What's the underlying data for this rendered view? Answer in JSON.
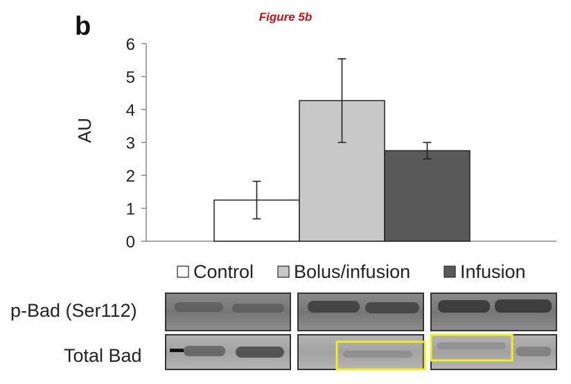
{
  "panel_letter": "b",
  "figure_title": "Figure 5b",
  "colors": {
    "control": "#ffffff",
    "bolus_infusion": "#c8c8c8",
    "infusion": "#595959",
    "highlight": "#f2ee1a",
    "axis": "#888888"
  },
  "chart_data": {
    "type": "bar",
    "title": "Figure 5b",
    "ylabel": "AU",
    "xlabel": "",
    "ylim": [
      0,
      6
    ],
    "yticks": [
      0,
      1,
      2,
      3,
      4,
      5,
      6
    ],
    "grid": false,
    "legend_position": "bottom",
    "series": [
      {
        "name": "Control",
        "value": 1.25,
        "error": 0.57,
        "color": "#ffffff"
      },
      {
        "name": "Bolus/infusion",
        "value": 4.27,
        "error": 1.27,
        "color": "#c8c8c8"
      },
      {
        "name": "Infusion",
        "value": 2.75,
        "error": 0.25,
        "color": "#595959"
      }
    ]
  },
  "blot": {
    "rows": [
      {
        "label": "p-Bad (Ser112)"
      },
      {
        "label": "Total Bad"
      }
    ]
  }
}
